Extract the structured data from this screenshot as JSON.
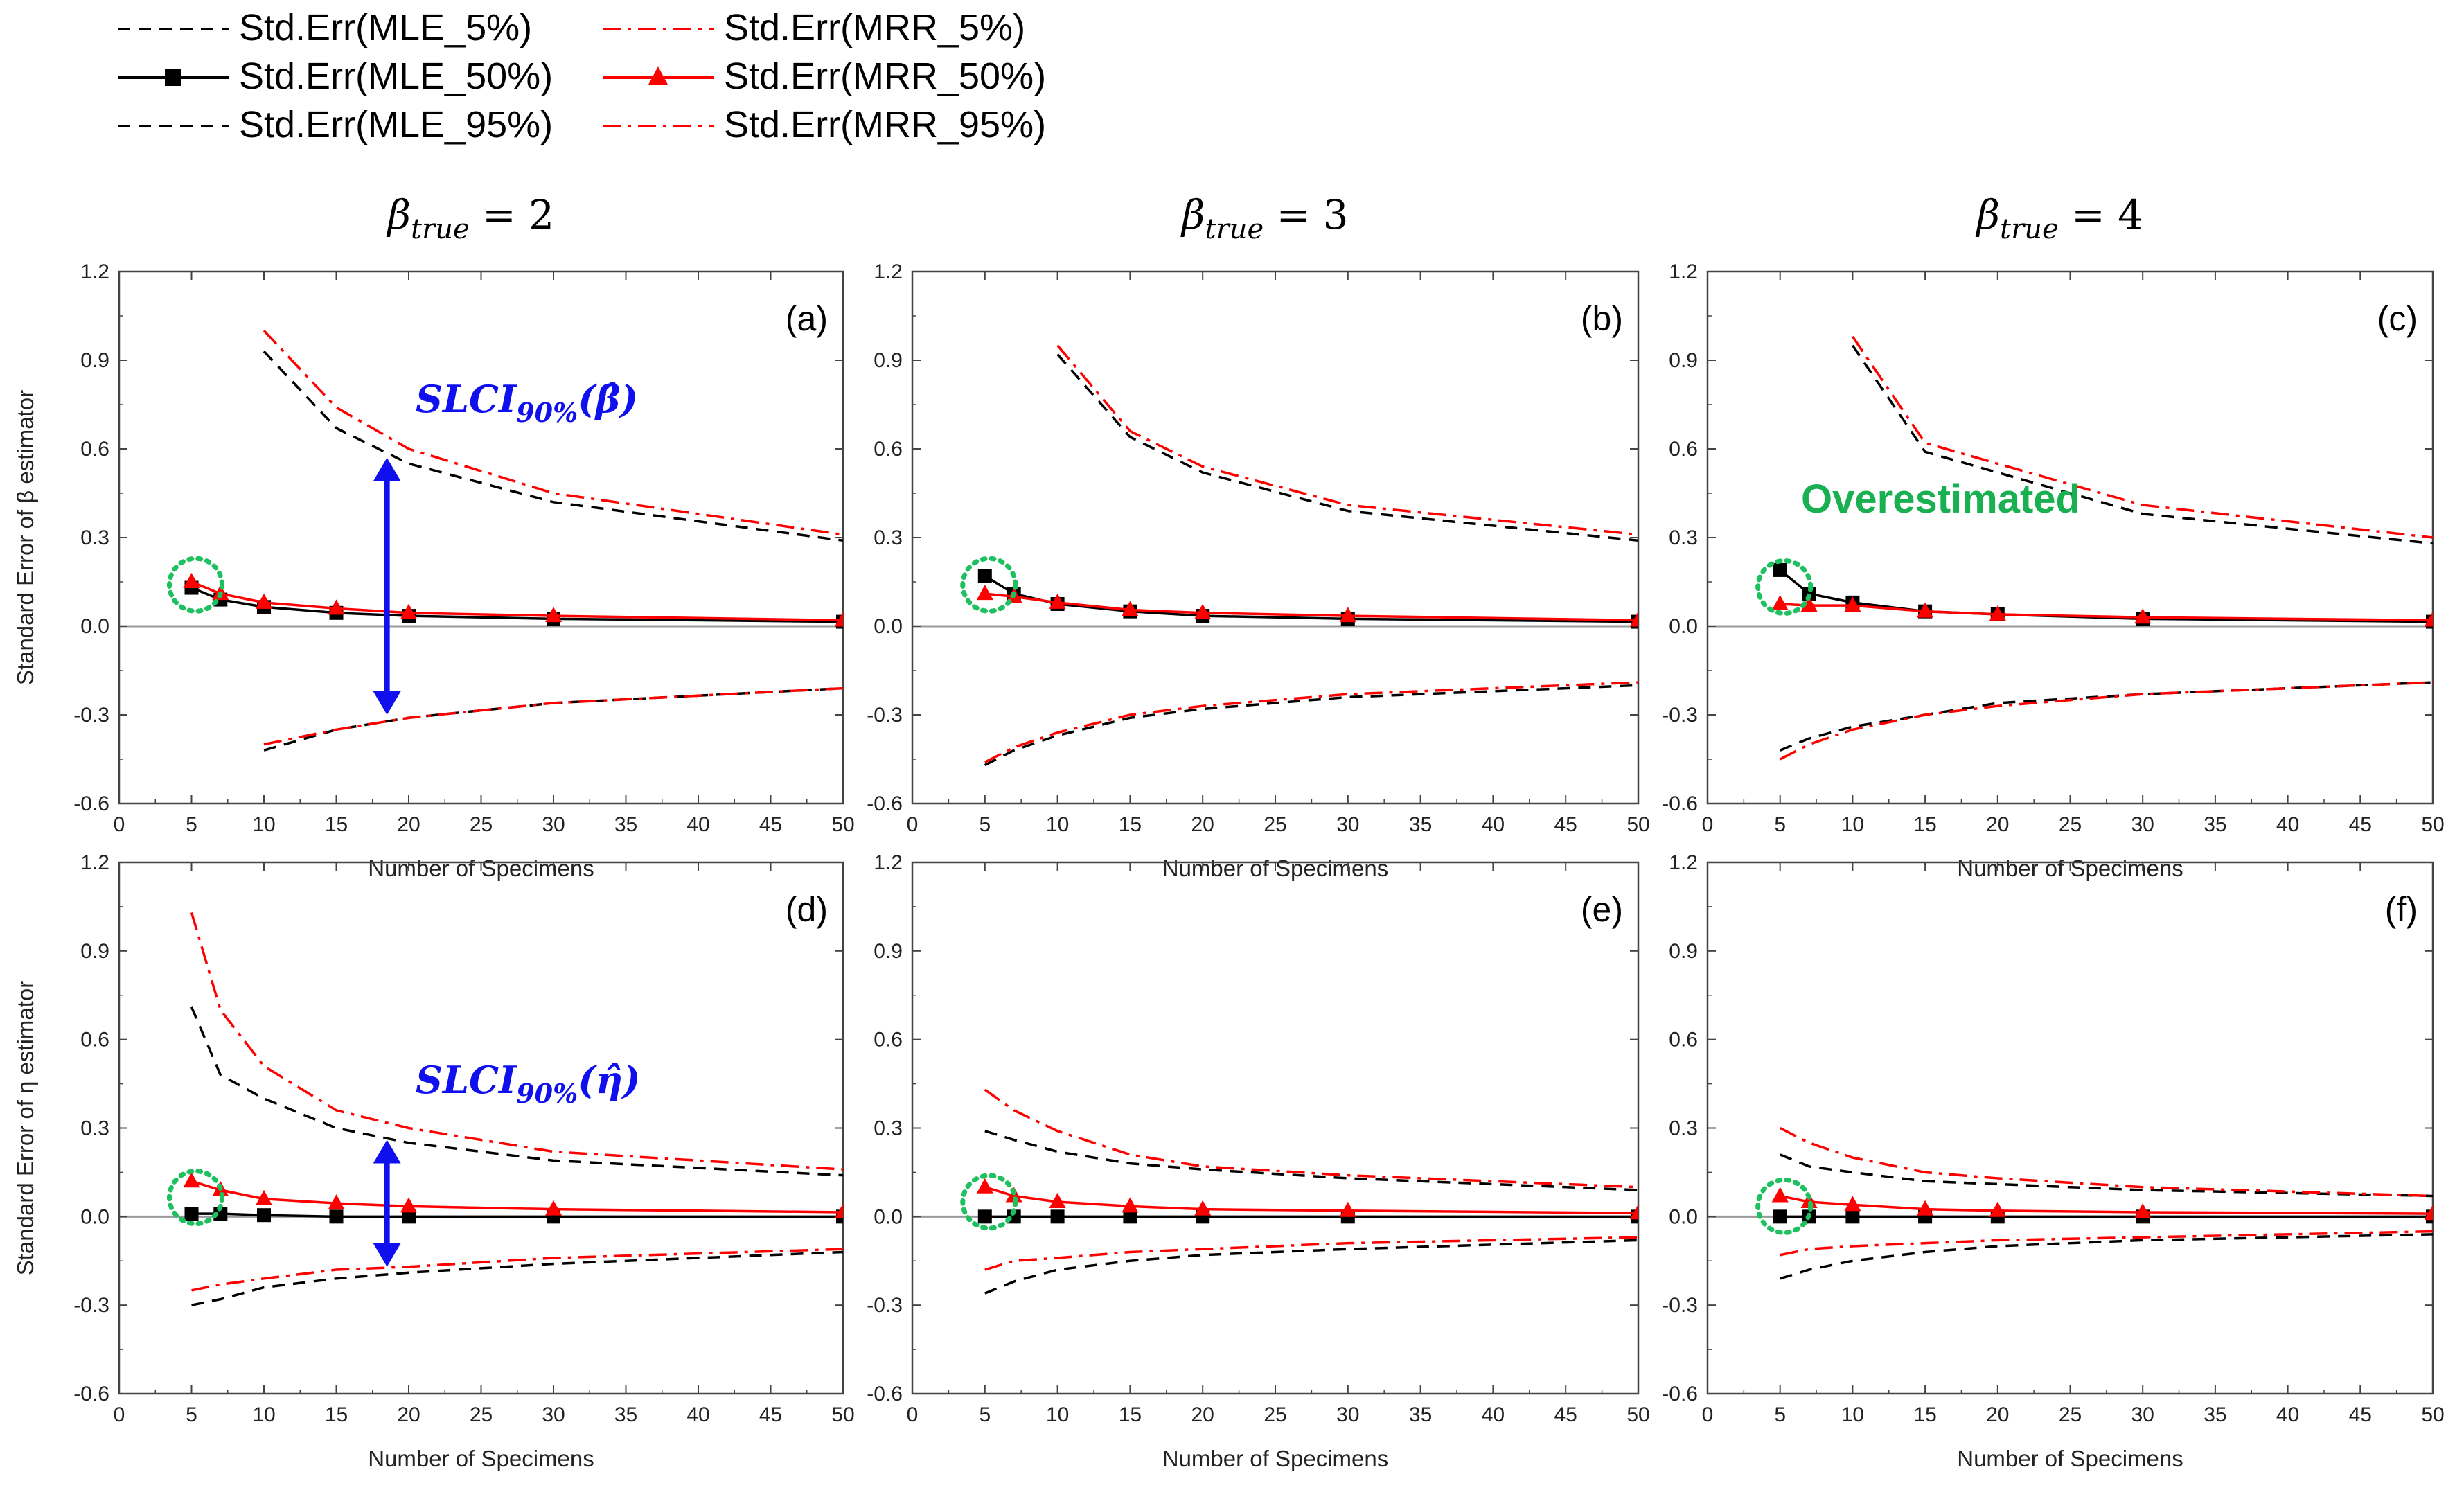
{
  "legend": [
    {
      "label": "Std.Err(MLE_5%)",
      "color": "#000000",
      "style": "dashed",
      "marker": "none"
    },
    {
      "label": "Std.Err(MRR_5%)",
      "color": "#ff0000",
      "style": "dashdot",
      "marker": "none"
    },
    {
      "label": "Std.Err(MLE_50%)",
      "color": "#000000",
      "style": "solid",
      "marker": "square"
    },
    {
      "label": "Std.Err(MRR_50%)",
      "color": "#ff0000",
      "style": "solid",
      "marker": "triangle"
    },
    {
      "label": "Std.Err(MLE_95%)",
      "color": "#000000",
      "style": "dashed",
      "marker": "none"
    },
    {
      "label": "Std.Err(MRR_95%)",
      "color": "#ff0000",
      "style": "dashdot",
      "marker": "none"
    }
  ],
  "columns": [
    {
      "prefix": "β",
      "sub": "true",
      "suffix": " = 2"
    },
    {
      "prefix": "β",
      "sub": "true",
      "suffix": " = 3"
    },
    {
      "prefix": "β",
      "sub": "true",
      "suffix": " = 4"
    }
  ],
  "axes": {
    "xlabel": "Number of Specimens",
    "ylabel_top": "Standard Error of β estimator",
    "ylabel_bottom": "Standard Error of η estimator",
    "xticks": [
      0,
      5,
      10,
      15,
      20,
      25,
      30,
      35,
      40,
      45,
      50
    ],
    "yticks": [
      -0.6,
      -0.3,
      0.0,
      0.3,
      0.6,
      0.9,
      1.2
    ],
    "ytick_labels": [
      "-0.6",
      "-0.3",
      "0.0",
      "0.3",
      "0.6",
      "0.9",
      "1.2"
    ]
  },
  "annotations": {
    "slci_beta": {
      "main": "SLCI",
      "sub": "90%",
      "tail": "(β̂)"
    },
    "slci_eta": {
      "main": "SLCI",
      "sub": "90%",
      "tail": "(η̂)"
    },
    "overestimated": "Overestimated"
  },
  "chart_data": [
    {
      "type": "line",
      "panel": "(a)",
      "title": "β_true = 2",
      "xlabel": "Number of Specimens",
      "ylabel": "Standard Error of β estimator",
      "xlim": [
        0,
        50
      ],
      "ylim": [
        -0.6,
        1.2
      ],
      "series": [
        {
          "name": "Std.Err(MLE_5%)",
          "x": [
            10,
            15,
            20,
            30,
            50
          ],
          "values": [
            -0.42,
            -0.35,
            -0.31,
            -0.26,
            -0.21
          ]
        },
        {
          "name": "Std.Err(MLE_50%)",
          "x": [
            5,
            7,
            10,
            15,
            20,
            30,
            50
          ],
          "values": [
            0.13,
            0.09,
            0.065,
            0.045,
            0.035,
            0.025,
            0.015
          ]
        },
        {
          "name": "Std.Err(MLE_95%)",
          "x": [
            10,
            15,
            20,
            30,
            50
          ],
          "values": [
            0.93,
            0.67,
            0.55,
            0.42,
            0.29
          ]
        },
        {
          "name": "Std.Err(MRR_5%)",
          "x": [
            10,
            15,
            20,
            30,
            50
          ],
          "values": [
            -0.4,
            -0.35,
            -0.31,
            -0.26,
            -0.21
          ]
        },
        {
          "name": "Std.Err(MRR_50%)",
          "x": [
            5,
            7,
            10,
            15,
            20,
            30,
            50
          ],
          "values": [
            0.15,
            0.11,
            0.08,
            0.06,
            0.045,
            0.035,
            0.02
          ]
        },
        {
          "name": "Std.Err(MRR_95%)",
          "x": [
            10,
            15,
            20,
            30,
            50
          ],
          "values": [
            1.0,
            0.74,
            0.6,
            0.45,
            0.31
          ]
        }
      ]
    },
    {
      "type": "line",
      "panel": "(b)",
      "title": "β_true = 3",
      "xlabel": "Number of Specimens",
      "ylabel": "",
      "xlim": [
        0,
        50
      ],
      "ylim": [
        -0.6,
        1.2
      ],
      "series": [
        {
          "name": "Std.Err(MLE_5%)",
          "x": [
            5,
            7,
            10,
            15,
            20,
            30,
            50
          ],
          "values": [
            -0.47,
            -0.42,
            -0.37,
            -0.31,
            -0.28,
            -0.24,
            -0.2
          ]
        },
        {
          "name": "Std.Err(MLE_50%)",
          "x": [
            5,
            7,
            10,
            15,
            20,
            30,
            50
          ],
          "values": [
            0.17,
            0.11,
            0.075,
            0.05,
            0.035,
            0.025,
            0.015
          ]
        },
        {
          "name": "Std.Err(MLE_95%)",
          "x": [
            10,
            15,
            20,
            30,
            50
          ],
          "values": [
            0.92,
            0.64,
            0.52,
            0.39,
            0.29
          ]
        },
        {
          "name": "Std.Err(MRR_5%)",
          "x": [
            5,
            7,
            10,
            15,
            20,
            30,
            50
          ],
          "values": [
            -0.46,
            -0.41,
            -0.36,
            -0.3,
            -0.27,
            -0.23,
            -0.19
          ]
        },
        {
          "name": "Std.Err(MRR_50%)",
          "x": [
            5,
            7,
            10,
            15,
            20,
            30,
            50
          ],
          "values": [
            0.11,
            0.1,
            0.08,
            0.055,
            0.045,
            0.035,
            0.02
          ]
        },
        {
          "name": "Std.Err(MRR_95%)",
          "x": [
            10,
            15,
            20,
            30,
            50
          ],
          "values": [
            0.95,
            0.66,
            0.54,
            0.41,
            0.31
          ]
        }
      ]
    },
    {
      "type": "line",
      "panel": "(c)",
      "title": "β_true = 4",
      "xlabel": "Number of Specimens",
      "ylabel": "",
      "xlim": [
        0,
        50
      ],
      "ylim": [
        -0.6,
        1.2
      ],
      "series": [
        {
          "name": "Std.Err(MLE_5%)",
          "x": [
            5,
            7,
            10,
            15,
            20,
            30,
            50
          ],
          "values": [
            -0.42,
            -0.38,
            -0.34,
            -0.3,
            -0.26,
            -0.23,
            -0.19
          ]
        },
        {
          "name": "Std.Err(MLE_50%)",
          "x": [
            5,
            7,
            10,
            15,
            20,
            30,
            50
          ],
          "values": [
            0.19,
            0.11,
            0.08,
            0.05,
            0.04,
            0.025,
            0.015
          ]
        },
        {
          "name": "Std.Err(MLE_95%)",
          "x": [
            10,
            15,
            30,
            50
          ],
          "values": [
            0.95,
            0.59,
            0.38,
            0.28
          ]
        },
        {
          "name": "Std.Err(MRR_5%)",
          "x": [
            5,
            7,
            10,
            15,
            20,
            30,
            50
          ],
          "values": [
            -0.45,
            -0.4,
            -0.35,
            -0.3,
            -0.27,
            -0.23,
            -0.19
          ]
        },
        {
          "name": "Std.Err(MRR_50%)",
          "x": [
            5,
            7,
            10,
            15,
            20,
            30,
            50
          ],
          "values": [
            0.075,
            0.07,
            0.07,
            0.05,
            0.04,
            0.03,
            0.02
          ]
        },
        {
          "name": "Std.Err(MRR_95%)",
          "x": [
            10,
            15,
            30,
            50
          ],
          "values": [
            0.98,
            0.62,
            0.41,
            0.3
          ]
        }
      ]
    },
    {
      "type": "line",
      "panel": "(d)",
      "title": "β_true = 2",
      "xlabel": "Number of Specimens",
      "ylabel": "Standard Error of η estimator",
      "xlim": [
        0,
        50
      ],
      "ylim": [
        -0.6,
        1.2
      ],
      "series": [
        {
          "name": "Std.Err(MLE_5%)",
          "x": [
            5,
            7,
            10,
            15,
            20,
            30,
            50
          ],
          "values": [
            -0.3,
            -0.28,
            -0.24,
            -0.21,
            -0.19,
            -0.16,
            -0.12
          ]
        },
        {
          "name": "Std.Err(MLE_50%)",
          "x": [
            5,
            7,
            10,
            15,
            20,
            30,
            50
          ],
          "values": [
            0.01,
            0.01,
            0.005,
            0.0,
            0.0,
            0.0,
            0.0
          ]
        },
        {
          "name": "Std.Err(MLE_95%)",
          "x": [
            5,
            7,
            10,
            15,
            20,
            30,
            50
          ],
          "values": [
            0.71,
            0.48,
            0.4,
            0.3,
            0.25,
            0.19,
            0.14
          ]
        },
        {
          "name": "Std.Err(MRR_5%)",
          "x": [
            5,
            7,
            10,
            15,
            20,
            30,
            50
          ],
          "values": [
            -0.25,
            -0.23,
            -0.21,
            -0.18,
            -0.17,
            -0.14,
            -0.11
          ]
        },
        {
          "name": "Std.Err(MRR_50%)",
          "x": [
            5,
            7,
            10,
            15,
            20,
            30,
            50
          ],
          "values": [
            0.12,
            0.09,
            0.06,
            0.045,
            0.035,
            0.025,
            0.015
          ]
        },
        {
          "name": "Std.Err(MRR_95%)",
          "x": [
            5,
            7,
            10,
            15,
            20,
            30,
            50
          ],
          "values": [
            1.03,
            0.7,
            0.51,
            0.36,
            0.3,
            0.22,
            0.16
          ]
        }
      ]
    },
    {
      "type": "line",
      "panel": "(e)",
      "title": "β_true = 3",
      "xlabel": "Number of Specimens",
      "ylabel": "",
      "xlim": [
        0,
        50
      ],
      "ylim": [
        -0.6,
        1.2
      ],
      "series": [
        {
          "name": "Std.Err(MLE_5%)",
          "x": [
            5,
            7,
            10,
            15,
            20,
            30,
            50
          ],
          "values": [
            -0.26,
            -0.22,
            -0.18,
            -0.15,
            -0.13,
            -0.11,
            -0.08
          ]
        },
        {
          "name": "Std.Err(MLE_50%)",
          "x": [
            5,
            7,
            10,
            15,
            20,
            30,
            50
          ],
          "values": [
            0.0,
            0.0,
            0.0,
            0.0,
            0.0,
            0.0,
            0.0
          ]
        },
        {
          "name": "Std.Err(MLE_95%)",
          "x": [
            5,
            7,
            10,
            15,
            20,
            30,
            50
          ],
          "values": [
            0.29,
            0.26,
            0.22,
            0.18,
            0.16,
            0.13,
            0.09
          ]
        },
        {
          "name": "Std.Err(MRR_5%)",
          "x": [
            5,
            7,
            10,
            15,
            20,
            30,
            50
          ],
          "values": [
            -0.18,
            -0.15,
            -0.14,
            -0.12,
            -0.11,
            -0.09,
            -0.07
          ]
        },
        {
          "name": "Std.Err(MRR_50%)",
          "x": [
            5,
            7,
            10,
            15,
            20,
            30,
            50
          ],
          "values": [
            0.1,
            0.07,
            0.05,
            0.035,
            0.025,
            0.02,
            0.012
          ]
        },
        {
          "name": "Std.Err(MRR_95%)",
          "x": [
            5,
            7,
            10,
            15,
            20,
            30,
            50
          ],
          "values": [
            0.43,
            0.36,
            0.29,
            0.21,
            0.17,
            0.14,
            0.1
          ]
        }
      ]
    },
    {
      "type": "line",
      "panel": "(f)",
      "title": "β_true = 4",
      "xlabel": "Number of Specimens",
      "ylabel": "",
      "xlim": [
        0,
        50
      ],
      "ylim": [
        -0.6,
        1.2
      ],
      "series": [
        {
          "name": "Std.Err(MLE_5%)",
          "x": [
            5,
            7,
            10,
            15,
            20,
            30,
            50
          ],
          "values": [
            -0.21,
            -0.18,
            -0.15,
            -0.12,
            -0.1,
            -0.08,
            -0.06
          ]
        },
        {
          "name": "Std.Err(MLE_50%)",
          "x": [
            5,
            7,
            10,
            15,
            20,
            30,
            50
          ],
          "values": [
            0.0,
            0.0,
            0.0,
            0.0,
            0.0,
            0.0,
            0.0
          ]
        },
        {
          "name": "Std.Err(MLE_95%)",
          "x": [
            5,
            7,
            10,
            15,
            20,
            30,
            50
          ],
          "values": [
            0.21,
            0.17,
            0.15,
            0.12,
            0.11,
            0.09,
            0.07
          ]
        },
        {
          "name": "Std.Err(MRR_5%)",
          "x": [
            5,
            7,
            10,
            15,
            20,
            30,
            50
          ],
          "values": [
            -0.13,
            -0.11,
            -0.1,
            -0.09,
            -0.08,
            -0.07,
            -0.05
          ]
        },
        {
          "name": "Std.Err(MRR_50%)",
          "x": [
            5,
            7,
            10,
            15,
            20,
            30,
            50
          ],
          "values": [
            0.07,
            0.05,
            0.04,
            0.025,
            0.02,
            0.015,
            0.01
          ]
        },
        {
          "name": "Std.Err(MRR_95%)",
          "x": [
            5,
            7,
            10,
            15,
            20,
            30,
            50
          ],
          "values": [
            0.3,
            0.25,
            0.2,
            0.15,
            0.13,
            0.1,
            0.07
          ]
        }
      ]
    }
  ]
}
